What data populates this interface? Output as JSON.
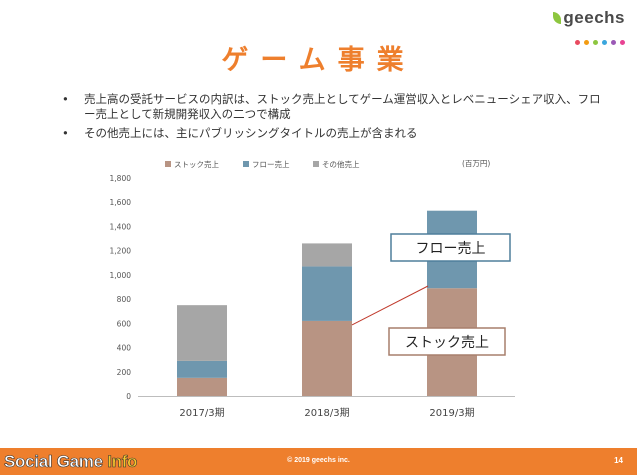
{
  "logo": {
    "text": "geechs",
    "dot_colors": [
      "#e84a5f",
      "#f39c12",
      "#8dc63f",
      "#3aa6dd",
      "#9b59b6",
      "#e84393"
    ]
  },
  "title": "ゲーム事業",
  "bullets": [
    "売上高の受託サービスの内訳は、ストック売上としてゲーム運営収入とレベニューシェア収入、フロー売上として新規開発収入の二つで構成",
    "その他売上には、主にパブリッシングタイトルの売上が含まれる"
  ],
  "bullet_glyph": "•",
  "chart_data": {
    "type": "bar",
    "stacked": true,
    "unit": "(百万円)",
    "categories": [
      "2017/3期",
      "2018/3期",
      "2019/3期"
    ],
    "series": [
      {
        "name": "ストック売上",
        "color": "#b89483",
        "values": [
          150,
          620,
          890
        ]
      },
      {
        "name": "フロー売上",
        "color": "#6f97ae",
        "values": [
          140,
          450,
          640
        ]
      },
      {
        "name": "その他売上",
        "color": "#a6a6a6",
        "values": [
          460,
          190,
          0
        ]
      }
    ],
    "ylim": [
      0,
      1800
    ],
    "yticks": [
      0,
      200,
      400,
      600,
      800,
      1000,
      1200,
      1400,
      1600,
      1800
    ],
    "ytick_labels": [
      "0",
      "200",
      "400",
      "600",
      "800",
      "1,000",
      "1,200",
      "1,400",
      "1,600",
      "1,800"
    ],
    "legend_position": "top",
    "grid": false,
    "callouts": [
      {
        "label": "フロー売上",
        "border_color": "#4f7f9b"
      },
      {
        "label": "ストック売上",
        "border_color": "#a77f6c"
      }
    ]
  },
  "footer": {
    "copyright": "© 2019 geechs inc.",
    "page_number": "14",
    "watermark_main": "Social Game ",
    "watermark_accent": "Info",
    "color": "#ee7f2d"
  }
}
